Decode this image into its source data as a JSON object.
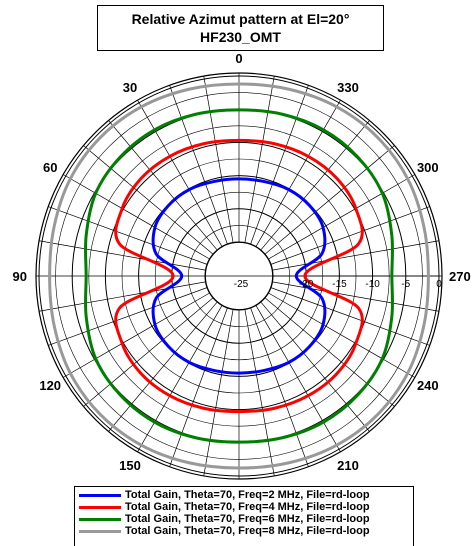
{
  "chart_data": {
    "type": "polar",
    "title": "Relative Azimut pattern at El=20°",
    "subtitle": "HF230_OMT",
    "angle_labels": [
      "0",
      "30",
      "60",
      "90",
      "120",
      "150",
      "180",
      "210",
      "240",
      "270",
      "300",
      "330"
    ],
    "radial_tick_labels": [
      "-25",
      "-20",
      "-15",
      "-10",
      "-5",
      "0"
    ],
    "radial_range": [
      -25,
      0
    ],
    "grid": true,
    "legend_placement": "bottom",
    "series": [
      {
        "name": "Total Gain, Theta=70, Freq=2 MHz, File=rd-loop",
        "color": "#0000ff",
        "angles": [
          0,
          15,
          30,
          45,
          60,
          75,
          90,
          105,
          120,
          135,
          150,
          165,
          180,
          195,
          210,
          225,
          240,
          255,
          270,
          285,
          300,
          315,
          330,
          345,
          360
        ],
        "values": [
          -15.5,
          -15.4,
          -15.1,
          -15.1,
          -15.5,
          -17.2,
          -21.5,
          -17.2,
          -15.5,
          -15.1,
          -15.1,
          -15.4,
          -15.5,
          -15.4,
          -15.1,
          -15.1,
          -15.5,
          -17.2,
          -21.5,
          -17.2,
          -15.5,
          -15.1,
          -15.1,
          -15.4,
          -15.5
        ]
      },
      {
        "name": "Total Gain, Theta=70, Freq=4 MHz, File=rd-loop",
        "color": "#ff0000",
        "angles": [
          0,
          15,
          30,
          45,
          60,
          75,
          90,
          105,
          120,
          135,
          150,
          165,
          180,
          195,
          210,
          225,
          240,
          255,
          270,
          285,
          300,
          315,
          330,
          345,
          360
        ],
        "values": [
          -9.7,
          -9.5,
          -9.3,
          -9.3,
          -9.8,
          -11.5,
          -20.2,
          -11.5,
          -9.8,
          -9.3,
          -9.3,
          -9.5,
          -9.7,
          -9.5,
          -9.3,
          -9.3,
          -9.8,
          -11.5,
          -20.2,
          -11.5,
          -9.8,
          -9.3,
          -9.3,
          -9.5,
          -9.7
        ]
      },
      {
        "name": "Total Gain, Theta=70, Freq=6 MHz, File=rd-loop",
        "color": "#008000",
        "angles": [
          0,
          15,
          30,
          45,
          60,
          75,
          90,
          105,
          120,
          135,
          150,
          165,
          180,
          195,
          210,
          225,
          240,
          255,
          270,
          285,
          300,
          315,
          330,
          345,
          360
        ],
        "values": [
          -5.1,
          -4.9,
          -4.7,
          -4.8,
          -5.2,
          -6.3,
          -7.1,
          -6.3,
          -5.2,
          -4.8,
          -4.7,
          -4.9,
          -5.1,
          -4.9,
          -4.7,
          -4.8,
          -5.2,
          -6.3,
          -7.1,
          -6.3,
          -5.2,
          -4.8,
          -4.7,
          -4.9,
          -5.1
        ]
      },
      {
        "name": "Total Gain, Theta=70, Freq=8 MHz, File=rd-loop",
        "color": "#999999",
        "angles": [
          0,
          15,
          30,
          45,
          60,
          75,
          90,
          105,
          120,
          135,
          150,
          165,
          180,
          195,
          210,
          225,
          240,
          255,
          270,
          285,
          300,
          315,
          330,
          345,
          360
        ],
        "values": [
          -1.2,
          -1.0,
          -0.7,
          -0.6,
          -0.8,
          -1.3,
          -1.6,
          -1.3,
          -0.8,
          -0.6,
          -0.7,
          -1.0,
          -1.2,
          -1.0,
          -0.7,
          -0.6,
          -0.8,
          -1.3,
          -1.6,
          -1.3,
          -0.8,
          -0.6,
          -0.7,
          -1.0,
          -1.2
        ]
      }
    ]
  }
}
